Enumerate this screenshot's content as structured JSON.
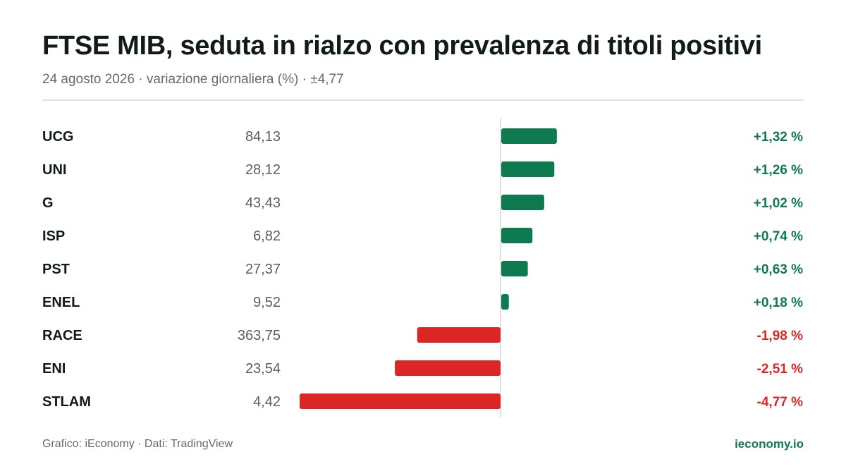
{
  "header": {
    "title": "FTSE MIB, seduta in rialzo con prevalenza di titoli positivi",
    "subtitle": "24 agosto 2026 · variazione giornaliera (%) · ±4,77"
  },
  "footer": {
    "source": "Grafico: iEconomy · Dati: TradingView",
    "brand": "ieconomy.io"
  },
  "colors": {
    "positive": "#0e7a4f",
    "negative": "#dc2626",
    "label": "#111c17",
    "price": "#5a5f5c",
    "axis": "#d6d6d6"
  },
  "chart_data": {
    "type": "bar",
    "orientation": "horizontal",
    "unit": "%",
    "range": [
      -4.77,
      4.77
    ],
    "grid": false,
    "rows": [
      {
        "ticker": "UCG",
        "price": "84,13",
        "change": 1.32,
        "change_label": "+1,32 %"
      },
      {
        "ticker": "UNI",
        "price": "28,12",
        "change": 1.26,
        "change_label": "+1,26 %"
      },
      {
        "ticker": "G",
        "price": "43,43",
        "change": 1.02,
        "change_label": "+1,02 %"
      },
      {
        "ticker": "ISP",
        "price": "6,82",
        "change": 0.74,
        "change_label": "+0,74 %"
      },
      {
        "ticker": "PST",
        "price": "27,37",
        "change": 0.63,
        "change_label": "+0,63 %"
      },
      {
        "ticker": "ENEL",
        "price": "9,52",
        "change": 0.18,
        "change_label": "+0,18 %"
      },
      {
        "ticker": "RACE",
        "price": "363,75",
        "change": -1.98,
        "change_label": "-1,98 %"
      },
      {
        "ticker": "ENI",
        "price": "23,54",
        "change": -2.51,
        "change_label": "-2,51 %"
      },
      {
        "ticker": "STLAM",
        "price": "4,42",
        "change": -4.77,
        "change_label": "-4,77 %"
      }
    ]
  }
}
